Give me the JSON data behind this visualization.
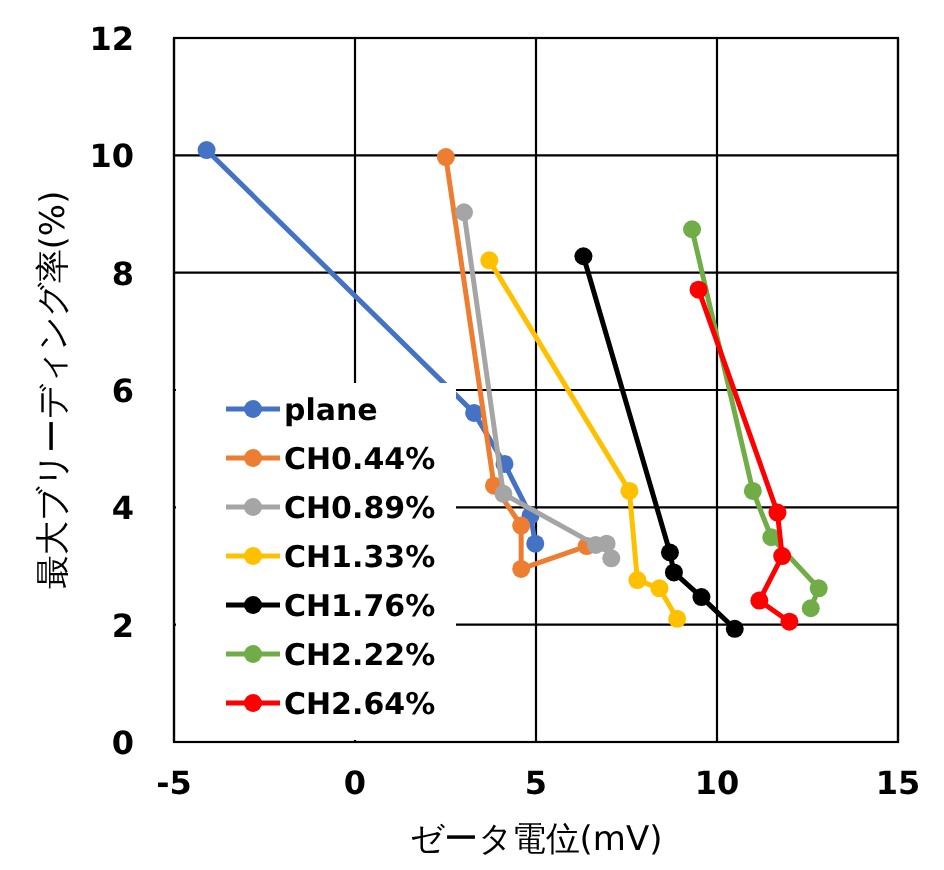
{
  "chart_data": {
    "type": "line",
    "xlabel": "ゼータ電位(mV)",
    "ylabel": "最大ブリーディング率(%)",
    "xlim": [
      -5,
      15
    ],
    "xticks": [
      -5,
      0,
      5,
      10,
      15
    ],
    "ylim": [
      0,
      12
    ],
    "yticks": [
      0,
      2,
      4,
      6,
      8,
      10,
      12
    ],
    "grid": true,
    "legend": "bottom left",
    "marker": "circle",
    "line_style": "solid",
    "series": [
      {
        "name": "plane",
        "color": "#4472c4",
        "x": [
          -4.1,
          3.29,
          4.13,
          4.85,
          4.98
        ],
        "values": [
          10.09,
          5.61,
          4.74,
          3.86,
          3.38
        ]
      },
      {
        "name": "CH0.44%",
        "color": "#ed7d31",
        "x": [
          2.51,
          3.84,
          4.59,
          4.59,
          6.4
        ],
        "values": [
          9.97,
          4.37,
          3.69,
          2.95,
          3.34
        ]
      },
      {
        "name": "CH0.89%",
        "color": "#a5a5a5",
        "x": [
          3.01,
          4.1,
          6.65,
          6.95,
          7.08
        ],
        "values": [
          9.03,
          4.23,
          3.36,
          3.38,
          3.13
        ]
      },
      {
        "name": "CH1.33%",
        "color": "#ffc000",
        "x": [
          3.71,
          7.58,
          7.8,
          8.41,
          8.9
        ],
        "values": [
          8.21,
          4.28,
          2.76,
          2.62,
          2.1
        ]
      },
      {
        "name": "CH1.76%",
        "color": "#000000",
        "x": [
          6.31,
          8.7,
          8.81,
          9.57,
          10.49
        ],
        "values": [
          8.28,
          3.23,
          2.89,
          2.47,
          1.93
        ]
      },
      {
        "name": "CH2.22%",
        "color": "#70ad47",
        "x": [
          9.31,
          10.99,
          11.5,
          12.81,
          12.59
        ],
        "values": [
          8.74,
          4.28,
          3.49,
          2.62,
          2.28
        ]
      },
      {
        "name": "CH2.64%",
        "color": "#ff0000",
        "x": [
          9.49,
          11.67,
          11.8,
          11.17,
          12.0
        ],
        "values": [
          7.71,
          3.91,
          3.17,
          2.41,
          2.05
        ]
      }
    ]
  }
}
